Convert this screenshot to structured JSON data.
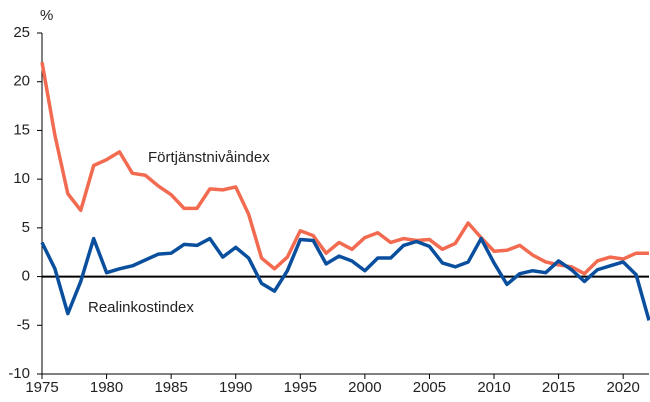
{
  "chart_data": {
    "type": "line",
    "ylabel": "%",
    "x": [
      1975,
      1976,
      1977,
      1978,
      1979,
      1980,
      1981,
      1982,
      1983,
      1984,
      1985,
      1986,
      1987,
      1988,
      1989,
      1990,
      1991,
      1992,
      1993,
      1994,
      1995,
      1996,
      1997,
      1998,
      1999,
      2000,
      2001,
      2002,
      2003,
      2004,
      2005,
      2006,
      2007,
      2008,
      2009,
      2010,
      2011,
      2012,
      2013,
      2014,
      2015,
      2016,
      2017,
      2018,
      2019,
      2020,
      2021,
      2022
    ],
    "series": [
      {
        "name": "Förtjänstnivåindex",
        "color": "#f26b50",
        "values": [
          22,
          14.5,
          8.5,
          6.8,
          11.4,
          12,
          12.8,
          10.6,
          10.4,
          9.3,
          8.4,
          7,
          7,
          9,
          8.9,
          9.2,
          6.4,
          1.9,
          0.8,
          2,
          4.7,
          4.2,
          2.4,
          3.5,
          2.8,
          4,
          4.5,
          3.5,
          3.9,
          3.7,
          3.8,
          2.8,
          3.4,
          5.5,
          4,
          2.6,
          2.7,
          3.2,
          2.2,
          1.5,
          1.2,
          1,
          0.3,
          1.6,
          2,
          1.8,
          2.4,
          2.4
        ]
      },
      {
        "name": "Realinkostindex",
        "color": "#0a4f9e",
        "values": [
          3.5,
          0.8,
          -3.8,
          -0.5,
          3.9,
          0.4,
          0.8,
          1.1,
          1.7,
          2.3,
          2.4,
          3.3,
          3.2,
          3.9,
          2,
          3,
          1.9,
          -0.7,
          -1.5,
          0.6,
          3.8,
          3.7,
          1.3,
          2.1,
          1.6,
          0.6,
          1.9,
          1.9,
          3.2,
          3.6,
          3.1,
          1.4,
          1,
          1.5,
          3.9,
          1.4,
          -0.8,
          0.3,
          0.6,
          0.4,
          1.6,
          0.7,
          -0.5,
          0.7,
          1.1,
          1.5,
          0.2,
          -4.5
        ]
      }
    ],
    "xlim": [
      1975,
      2022
    ],
    "xticks": [
      1975,
      1980,
      1985,
      1990,
      1995,
      2000,
      2005,
      2010,
      2015,
      2020
    ],
    "ylim": [
      -10,
      25
    ],
    "yticks": [
      -10,
      -5,
      0,
      5,
      10,
      15,
      20,
      25
    ]
  }
}
